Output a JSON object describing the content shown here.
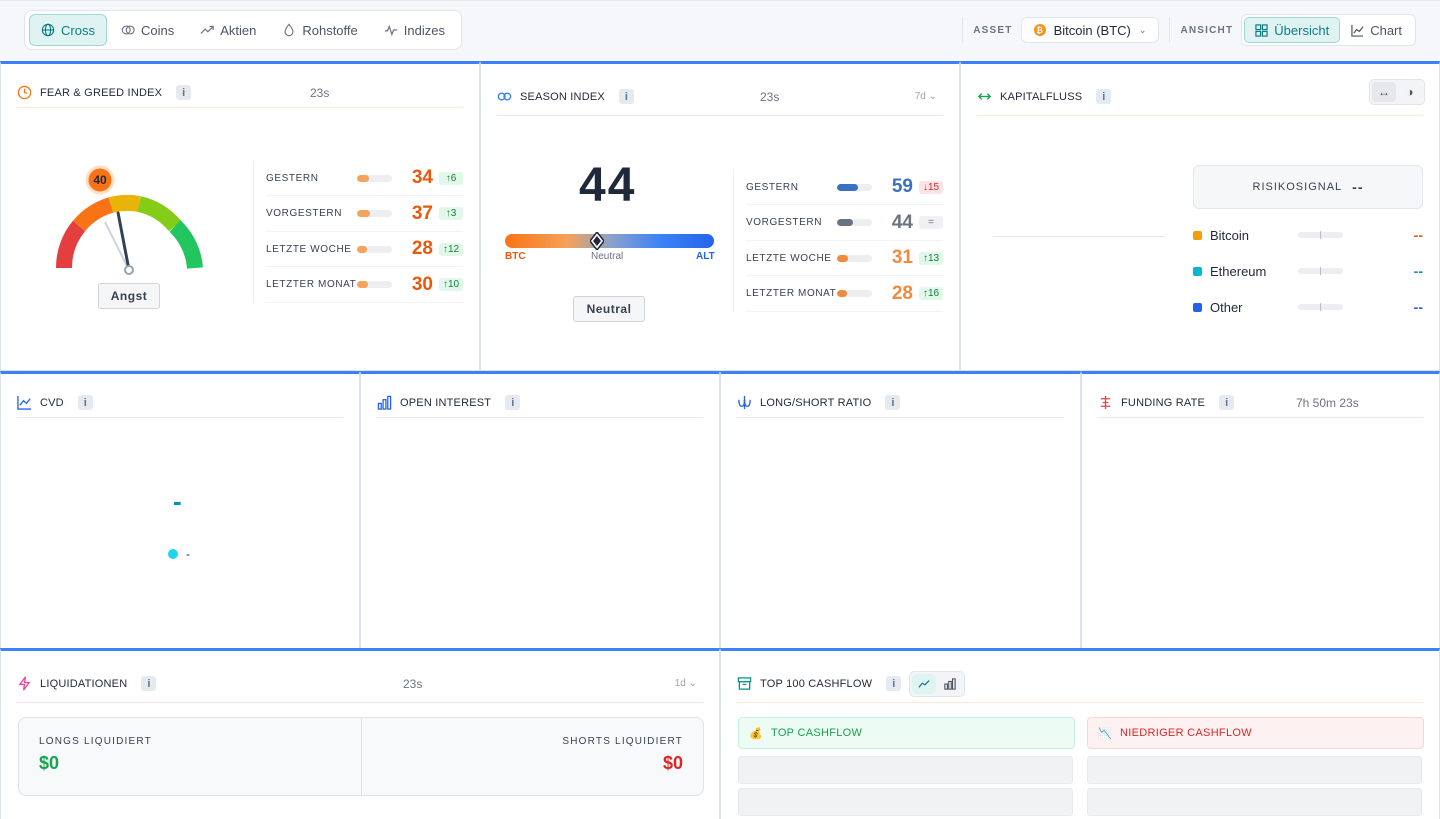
{
  "nav": {
    "tabs": [
      {
        "label": "Cross",
        "icon": "globe-icon"
      },
      {
        "label": "Coins",
        "icon": "coins-icon"
      },
      {
        "label": "Aktien",
        "icon": "trend-icon"
      },
      {
        "label": "Rohstoffe",
        "icon": "drop-icon"
      },
      {
        "label": "Indizes",
        "icon": "pulse-icon"
      }
    ],
    "asset_label": "ASSET",
    "asset_value": "Bitcoin (BTC)",
    "view_label": "ANSICHT",
    "view_overview": "Übersicht",
    "view_chart": "Chart"
  },
  "fear_greed": {
    "title": "FEAR & GREED INDEX",
    "timer": "23s",
    "value": "40",
    "gauge_fraction": 0.4,
    "label": "Angst",
    "rows": [
      {
        "label": "GESTERN",
        "value": "34",
        "delta": "↑6",
        "dir": "up",
        "fill": 0.34
      },
      {
        "label": "VORGESTERN",
        "value": "37",
        "delta": "↑3",
        "dir": "up",
        "fill": 0.37
      },
      {
        "label": "LETZTE WOCHE",
        "value": "28",
        "delta": "↑12",
        "dir": "up",
        "fill": 0.28
      },
      {
        "label": "LETZTER MONAT",
        "value": "30",
        "delta": "↑10",
        "dir": "up",
        "fill": 0.3
      }
    ]
  },
  "season": {
    "title": "SEASON INDEX",
    "timer": "23s",
    "range": "7d",
    "value": "44",
    "position": 0.44,
    "left_label": "BTC",
    "mid_label": "Neutral",
    "right_label": "ALT",
    "label": "Neutral",
    "rows": [
      {
        "label": "GESTERN",
        "value": "59",
        "delta": "↓15",
        "dir": "down",
        "fill": 0.59,
        "color": "#3b6fc4"
      },
      {
        "label": "VORGESTERN",
        "value": "44",
        "delta": "=",
        "dir": "eq",
        "fill": 0.44,
        "color": "#6b7280"
      },
      {
        "label": "LETZTE WOCHE",
        "value": "31",
        "delta": "↑13",
        "dir": "up",
        "fill": 0.31,
        "color": "#f08a3c"
      },
      {
        "label": "LETZTER MONAT",
        "value": "28",
        "delta": "↑16",
        "dir": "up",
        "fill": 0.28,
        "color": "#f08a3c"
      }
    ]
  },
  "kapitalfluss": {
    "title": "KAPITALFLUSS",
    "risk_label": "RISIKOSIGNAL",
    "risk_value": "--",
    "rows": [
      {
        "label": "Bitcoin",
        "value": "--",
        "color": "#f59e0b",
        "vcolor": "#ea580c"
      },
      {
        "label": "Ethereum",
        "value": "--",
        "color": "#06b6d4",
        "vcolor": "#0891b2"
      },
      {
        "label": "Other",
        "value": "--",
        "color": "#2563eb",
        "vcolor": "#2563eb"
      }
    ]
  },
  "cvd": {
    "title": "CVD",
    "value": "-",
    "legend": "-"
  },
  "open_interest": {
    "title": "OPEN INTEREST"
  },
  "long_short": {
    "title": "LONG/SHORT RATIO"
  },
  "funding": {
    "title": "FUNDING RATE",
    "timer": "7h 50m 23s"
  },
  "liquidations": {
    "title": "LIQUIDATIONEN",
    "timer": "23s",
    "range": "1d",
    "longs_label": "LONGS LIQUIDIERT",
    "longs_value": "$0",
    "shorts_label": "SHORTS LIQUIDIERT",
    "shorts_value": "$0"
  },
  "cashflow": {
    "title": "TOP 100 CASHFLOW",
    "top_label": "TOP CASHFLOW",
    "low_label": "NIEDRIGER CASHFLOW"
  },
  "colors": {
    "accent": "#3b82f6",
    "teal": "#0f7c82",
    "orange": "#ea580c",
    "green": "#16a34a",
    "red": "#dc2626"
  }
}
